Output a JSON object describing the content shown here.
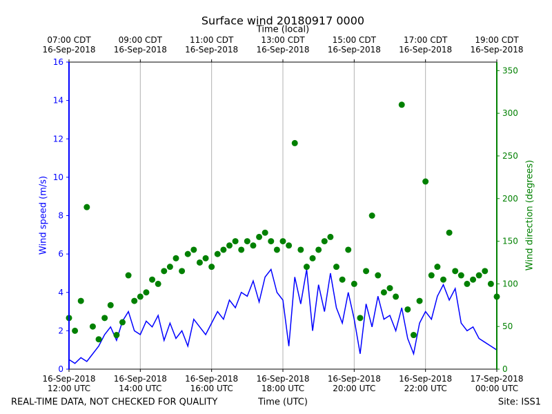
{
  "chart_data": {
    "type": "line-scatter",
    "title": "Surface wind 20180917 0000",
    "x2label": "Time (local)",
    "xlabel": "Time (UTC)",
    "ylabel": "Wind speed (m/s)",
    "y2label": "Wind direction (degrees)",
    "footer_left": "REAL-TIME DATA, NOT CHECKED FOR QUALITY",
    "footer_right": "Site: ISS1",
    "grid": true,
    "xlim": [
      "2018-09-16T12:00",
      "2018-09-17T00:00"
    ],
    "xticks": [
      {
        "value": "2018-09-16T12:00",
        "label": "16-Sep-2018\n12:00 UTC"
      },
      {
        "value": "2018-09-16T14:00",
        "label": "16-Sep-2018\n14:00 UTC"
      },
      {
        "value": "2018-09-16T16:00",
        "label": "16-Sep-2018\n16:00 UTC"
      },
      {
        "value": "2018-09-16T18:00",
        "label": "16-Sep-2018\n18:00 UTC"
      },
      {
        "value": "2018-09-16T20:00",
        "label": "16-Sep-2018\n20:00 UTC"
      },
      {
        "value": "2018-09-16T22:00",
        "label": "16-Sep-2018\n22:00 UTC"
      },
      {
        "value": "2018-09-17T00:00",
        "label": "17-Sep-2018\n00:00 UTC"
      }
    ],
    "x2ticks": [
      {
        "value": "2018-09-16T12:00",
        "label": "07:00 CDT\n16-Sep-2018"
      },
      {
        "value": "2018-09-16T14:00",
        "label": "09:00 CDT\n16-Sep-2018"
      },
      {
        "value": "2018-09-16T16:00",
        "label": "11:00 CDT\n16-Sep-2018"
      },
      {
        "value": "2018-09-16T18:00",
        "label": "13:00 CDT\n16-Sep-2018"
      },
      {
        "value": "2018-09-16T20:00",
        "label": "15:00 CDT\n16-Sep-2018"
      },
      {
        "value": "2018-09-16T22:00",
        "label": "17:00 CDT\n16-Sep-2018"
      },
      {
        "value": "2018-09-17T00:00",
        "label": "19:00 CDT\n16-Sep-2018"
      }
    ],
    "ylim": [
      0,
      16
    ],
    "yticks": [
      0,
      2,
      4,
      6,
      8,
      10,
      12,
      14,
      16
    ],
    "y2lim": [
      0,
      360
    ],
    "y2ticks": [
      0,
      50,
      100,
      150,
      200,
      250,
      300,
      350
    ],
    "x": [
      "2018-09-16T12:00",
      "2018-09-16T12:10",
      "2018-09-16T12:20",
      "2018-09-16T12:30",
      "2018-09-16T12:40",
      "2018-09-16T12:50",
      "2018-09-16T13:00",
      "2018-09-16T13:10",
      "2018-09-16T13:20",
      "2018-09-16T13:30",
      "2018-09-16T13:40",
      "2018-09-16T13:50",
      "2018-09-16T14:00",
      "2018-09-16T14:10",
      "2018-09-16T14:20",
      "2018-09-16T14:30",
      "2018-09-16T14:40",
      "2018-09-16T14:50",
      "2018-09-16T15:00",
      "2018-09-16T15:10",
      "2018-09-16T15:20",
      "2018-09-16T15:30",
      "2018-09-16T15:40",
      "2018-09-16T15:50",
      "2018-09-16T16:00",
      "2018-09-16T16:10",
      "2018-09-16T16:20",
      "2018-09-16T16:30",
      "2018-09-16T16:40",
      "2018-09-16T16:50",
      "2018-09-16T17:00",
      "2018-09-16T17:10",
      "2018-09-16T17:20",
      "2018-09-16T17:30",
      "2018-09-16T17:40",
      "2018-09-16T17:50",
      "2018-09-16T18:00",
      "2018-09-16T18:10",
      "2018-09-16T18:20",
      "2018-09-16T18:30",
      "2018-09-16T18:40",
      "2018-09-16T18:50",
      "2018-09-16T19:00",
      "2018-09-16T19:10",
      "2018-09-16T19:20",
      "2018-09-16T19:30",
      "2018-09-16T19:40",
      "2018-09-16T19:50",
      "2018-09-16T20:00",
      "2018-09-16T20:10",
      "2018-09-16T20:20",
      "2018-09-16T20:30",
      "2018-09-16T20:40",
      "2018-09-16T20:50",
      "2018-09-16T21:00",
      "2018-09-16T21:10",
      "2018-09-16T21:20",
      "2018-09-16T21:30",
      "2018-09-16T21:40",
      "2018-09-16T21:50",
      "2018-09-16T22:00",
      "2018-09-16T22:10",
      "2018-09-16T22:20",
      "2018-09-16T22:30",
      "2018-09-16T22:40",
      "2018-09-16T22:50",
      "2018-09-16T23:00",
      "2018-09-16T23:10",
      "2018-09-16T23:20",
      "2018-09-16T23:30",
      "2018-09-16T23:40",
      "2018-09-16T23:50",
      "2018-09-17T00:00"
    ],
    "series": [
      {
        "kind": "line",
        "color": "#0000ff",
        "values": [
          0.5,
          0.3,
          0.6,
          0.4,
          0.8,
          1.2,
          1.8,
          2.2,
          1.5,
          2.5,
          3.0,
          2.0,
          1.8,
          2.5,
          2.2,
          2.8,
          1.5,
          2.4,
          1.6,
          2.0,
          1.2,
          2.6,
          2.2,
          1.8,
          2.4,
          3.0,
          2.6,
          3.6,
          3.2,
          4.0,
          3.8,
          4.6,
          3.5,
          4.8,
          5.2,
          4.0,
          3.6,
          1.2,
          4.8,
          3.4,
          5.2,
          2.0,
          4.4,
          3.0,
          5.0,
          3.2,
          2.4,
          4.0,
          2.6,
          0.8,
          3.4,
          2.2,
          3.8,
          2.6,
          2.8,
          2.0,
          3.2,
          1.6,
          0.8,
          2.4,
          3.0,
          2.6,
          3.8,
          4.4,
          3.6,
          4.2,
          2.4,
          2.0,
          2.2,
          1.6,
          1.4,
          1.2,
          1.0
        ]
      },
      {
        "kind": "dots",
        "axis": "y2",
        "color": "#008000",
        "values": [
          60,
          45,
          80,
          190,
          50,
          35,
          60,
          75,
          40,
          55,
          110,
          80,
          85,
          90,
          105,
          100,
          115,
          120,
          130,
          115,
          135,
          140,
          125,
          130,
          120,
          135,
          140,
          145,
          150,
          140,
          150,
          145,
          155,
          160,
          150,
          140,
          150,
          145,
          265,
          140,
          120,
          130,
          140,
          150,
          155,
          120,
          105,
          140,
          100,
          60,
          115,
          180,
          110,
          90,
          95,
          85,
          310,
          70,
          40,
          80,
          220,
          110,
          120,
          105,
          160,
          115,
          110,
          100,
          105,
          110,
          115,
          100,
          85
        ]
      }
    ]
  }
}
